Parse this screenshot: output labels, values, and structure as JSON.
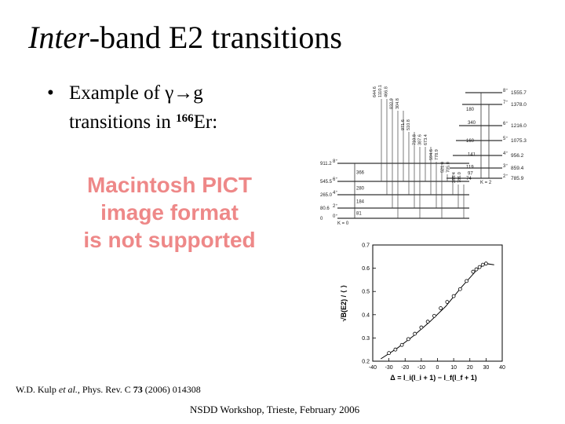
{
  "title": {
    "italic_part": "Inter",
    "rest": "-band E2 transitions"
  },
  "bullet": {
    "line1_prefix": "Example of ",
    "gamma": "γ",
    "arrow": "→",
    "g": "g",
    "line2_prefix": "transitions in ",
    "mass_number": "166",
    "element": "Er:"
  },
  "placeholder_image": {
    "line1": "Macintosh PICT",
    "line2": "image format",
    "line3": "is not supported"
  },
  "citation": {
    "authors": "W.D. Kulp ",
    "etal": "et al.",
    "journal": ", Phys. Rev. C ",
    "volume": "73",
    "rest": " (2006) 014308"
  },
  "footer": "NSDD Workshop, Trieste, February 2006",
  "level_scheme": {
    "gamma_band_levels": [
      {
        "label": "8⁺",
        "energy": "1555.7"
      },
      {
        "label": "7⁺",
        "energy": "1378.0"
      },
      {
        "label": "6⁺",
        "energy": "1216.0"
      },
      {
        "label": "5⁺",
        "energy": "1075.3"
      },
      {
        "label": "4⁺",
        "energy": "956.2"
      },
      {
        "label": "3⁺",
        "energy": "859.4"
      },
      {
        "label": "2⁺",
        "energy": "785.9"
      }
    ],
    "gamma_band_k": "K = 2",
    "ground_band_levels": [
      {
        "label": "8⁺",
        "energy": "911.2"
      },
      {
        "label": "6⁺",
        "energy": "545.5"
      },
      {
        "label": "4⁺",
        "energy": "265.0"
      },
      {
        "label": "2⁺",
        "energy": "80.6"
      },
      {
        "label": "0⁺",
        "energy": "0"
      }
    ],
    "ground_band_k": "K = 0",
    "in_band_transitions": [
      "180",
      "340",
      "160",
      "141",
      "119",
      "97",
      "74"
    ],
    "ground_transitions": [
      "366",
      "280",
      "184",
      "81"
    ],
    "inter_band_labels": [
      "644.6",
      "1110.1",
      "466.8",
      "832.9",
      "304.8",
      "971.6",
      "510.8",
      "710.8",
      "387.6",
      "673.4",
      "594.6",
      "778.9",
      "521.6",
      "705.0",
      "285.4",
      "786.0"
    ]
  },
  "chart_data": {
    "type": "scatter",
    "title": "",
    "xlabel": "Δ = I_i(I_i + 1) − I_f(I_f + 1)",
    "ylabel": "√B(E2) / ⟨ ⟩",
    "xlim": [
      -40,
      40
    ],
    "ylim": [
      0.2,
      0.7
    ],
    "x_ticks": [
      -40,
      -30,
      -20,
      -10,
      0,
      10,
      20,
      30,
      40
    ],
    "y_ticks": [
      0.2,
      0.3,
      0.4,
      0.5,
      0.6,
      0.7
    ],
    "grid": false,
    "x": [
      -30,
      -26,
      -22,
      -18,
      -14,
      -10,
      -6,
      -2,
      2,
      6,
      10,
      14,
      18,
      22,
      24,
      26,
      28,
      30
    ],
    "y": [
      0.235,
      0.25,
      0.27,
      0.295,
      0.318,
      0.345,
      0.37,
      0.395,
      0.428,
      0.455,
      0.48,
      0.51,
      0.545,
      0.585,
      0.595,
      0.605,
      0.615,
      0.62
    ],
    "fit_x": [
      -35,
      -25,
      -15,
      -5,
      5,
      15,
      25,
      30,
      35
    ],
    "fit_y": [
      0.21,
      0.255,
      0.308,
      0.368,
      0.435,
      0.52,
      0.598,
      0.62,
      0.615
    ]
  }
}
